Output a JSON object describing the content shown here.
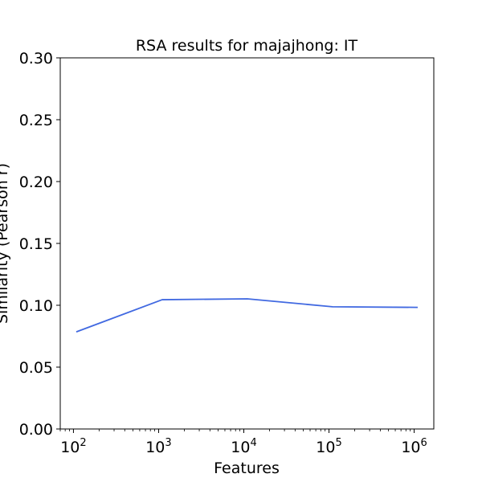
{
  "chart_data": {
    "type": "line",
    "title": "RSA results for majajhong: IT",
    "xlabel": "Features",
    "ylabel": "Similarity (Pearson r)",
    "x_scale": "log",
    "xlim": [
      70,
      1700000
    ],
    "ylim": [
      0,
      0.3
    ],
    "y_ticks": [
      0.0,
      0.05,
      0.1,
      0.15,
      0.2,
      0.25,
      0.3
    ],
    "y_tick_labels": [
      "0.00",
      "0.05",
      "0.10",
      "0.15",
      "0.20",
      "0.25",
      "0.30"
    ],
    "x_ticks": [
      100,
      1000,
      10000,
      100000,
      1000000
    ],
    "x_tick_labels": [
      {
        "base": "10",
        "exp": "2"
      },
      {
        "base": "10",
        "exp": "3"
      },
      {
        "base": "10",
        "exp": "4"
      },
      {
        "base": "10",
        "exp": "5"
      },
      {
        "base": "10",
        "exp": "6"
      }
    ],
    "grid": false,
    "series": [
      {
        "color": "#4169e1",
        "x": [
          108,
          1100,
          11000,
          110000,
          1100000
        ],
        "y": [
          0.0785,
          0.1045,
          0.1052,
          0.0988,
          0.0983
        ]
      }
    ]
  }
}
